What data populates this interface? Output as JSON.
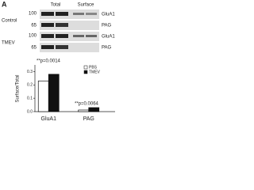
{
  "panel_label": "A",
  "blot": {
    "columns": [
      "Total",
      "Surface"
    ],
    "groups": [
      "Control",
      "TMEV"
    ],
    "proteins": [
      "GluA1",
      "PAG"
    ],
    "markers": [
      "100",
      "65"
    ]
  },
  "chart_data": {
    "type": "bar",
    "ylabel": "Surface/Total",
    "categories": [
      "GluA1",
      "PAG"
    ],
    "series": [
      {
        "name": "PBS",
        "color": "#ffffff",
        "values": [
          0.23,
          0.012
        ]
      },
      {
        "name": "TMEV",
        "color": "#111111",
        "values": [
          0.28,
          0.03
        ]
      }
    ],
    "ylim": [
      0,
      0.35
    ],
    "yticks": [
      {
        "value": 0,
        "label": "0.0"
      },
      0.1,
      0.2,
      0.3
    ],
    "annotations": [
      "**p=0.0014",
      "**p=0.0064"
    ],
    "legend": "upper right"
  }
}
